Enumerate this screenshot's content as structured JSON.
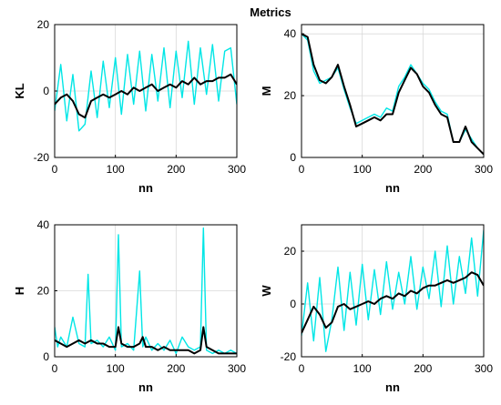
{
  "figure": {
    "title": "Metrics"
  },
  "chart_data": [
    {
      "type": "line",
      "ylabel": "KL",
      "xlabel": "nn",
      "xlim": [
        0,
        300
      ],
      "ylim": [
        -20,
        20
      ],
      "xticks": [
        0,
        100,
        200,
        300
      ],
      "yticks": [
        -20,
        0,
        20
      ],
      "grid": true,
      "colors": {
        "raw": "#00e6e6",
        "smooth": "#000000"
      },
      "series": [
        {
          "style": "raw",
          "x": [
            0,
            10,
            20,
            30,
            40,
            50,
            60,
            70,
            80,
            90,
            100,
            110,
            120,
            130,
            140,
            150,
            160,
            170,
            180,
            190,
            200,
            210,
            220,
            230,
            240,
            250,
            260,
            270,
            280,
            290,
            300
          ],
          "y": [
            -6,
            8,
            -9,
            5,
            -12,
            -10,
            6,
            -8,
            9,
            -5,
            10,
            -7,
            11,
            -4,
            12,
            -6,
            11,
            -3,
            13,
            -5,
            12,
            -2,
            15,
            -4,
            13,
            -1,
            14,
            -3,
            12,
            13,
            -4
          ]
        },
        {
          "style": "smooth",
          "x": [
            0,
            10,
            20,
            30,
            40,
            50,
            60,
            70,
            80,
            90,
            100,
            110,
            120,
            130,
            140,
            150,
            160,
            170,
            180,
            190,
            200,
            210,
            220,
            230,
            240,
            250,
            260,
            270,
            280,
            290,
            300
          ],
          "y": [
            -4,
            -2,
            -1,
            -3,
            -7,
            -8,
            -3,
            -2,
            -1,
            -2,
            -1,
            0,
            -1,
            1,
            0,
            1,
            2,
            0,
            1,
            2,
            1,
            3,
            2,
            4,
            2,
            3,
            3,
            4,
            4,
            5,
            2
          ]
        }
      ]
    },
    {
      "type": "line",
      "ylabel": "M",
      "xlabel": "nn",
      "xlim": [
        0,
        300
      ],
      "ylim": [
        0,
        43
      ],
      "xticks": [
        0,
        100,
        200,
        300
      ],
      "yticks": [
        0,
        20,
        40
      ],
      "grid": true,
      "colors": {
        "raw": "#00e6e6",
        "smooth": "#000000"
      },
      "series": [
        {
          "style": "raw",
          "x": [
            0,
            10,
            20,
            30,
            40,
            50,
            60,
            70,
            80,
            90,
            100,
            110,
            120,
            130,
            140,
            150,
            160,
            170,
            180,
            190,
            200,
            210,
            220,
            230,
            240,
            250,
            260,
            270,
            280,
            290,
            300
          ],
          "y": [
            40,
            38,
            28,
            24,
            25,
            26,
            29,
            22,
            16,
            11,
            12,
            13,
            14,
            13,
            16,
            15,
            23,
            26,
            30,
            27,
            24,
            22,
            18,
            15,
            14,
            5,
            5,
            9,
            6,
            3,
            1
          ]
        },
        {
          "style": "smooth",
          "x": [
            0,
            10,
            20,
            30,
            40,
            50,
            60,
            70,
            80,
            90,
            100,
            110,
            120,
            130,
            140,
            150,
            160,
            170,
            180,
            190,
            200,
            210,
            220,
            230,
            240,
            250,
            260,
            270,
            280,
            290,
            300
          ],
          "y": [
            40,
            39,
            30,
            25,
            24,
            26,
            30,
            23,
            17,
            10,
            11,
            12,
            13,
            12,
            14,
            14,
            21,
            25,
            29,
            27,
            23,
            21,
            17,
            14,
            13,
            5,
            5,
            10,
            5,
            3,
            1
          ]
        }
      ]
    },
    {
      "type": "line",
      "ylabel": "H",
      "xlabel": "nn",
      "xlim": [
        0,
        300
      ],
      "ylim": [
        0,
        40
      ],
      "xticks": [
        0,
        100,
        200,
        300
      ],
      "yticks": [
        0,
        20,
        40
      ],
      "grid": true,
      "colors": {
        "raw": "#00e6e6",
        "smooth": "#000000"
      },
      "series": [
        {
          "style": "raw",
          "x": [
            0,
            5,
            10,
            20,
            30,
            40,
            50,
            55,
            60,
            70,
            80,
            90,
            100,
            105,
            110,
            120,
            130,
            140,
            145,
            150,
            160,
            170,
            180,
            190,
            200,
            210,
            220,
            230,
            240,
            245,
            250,
            260,
            270,
            280,
            290,
            300
          ],
          "y": [
            9,
            3,
            6,
            3,
            12,
            4,
            3,
            25,
            4,
            5,
            3,
            6,
            2,
            37,
            3,
            4,
            2,
            26,
            3,
            6,
            2,
            4,
            2,
            5,
            1,
            6,
            3,
            2,
            3,
            39,
            2,
            1,
            2,
            1,
            2,
            1
          ],
          "peaks_note": ""
        },
        {
          "style": "smooth",
          "x": [
            0,
            10,
            20,
            30,
            40,
            50,
            60,
            70,
            80,
            90,
            100,
            105,
            110,
            120,
            130,
            140,
            145,
            150,
            160,
            170,
            180,
            190,
            200,
            210,
            220,
            230,
            240,
            245,
            250,
            260,
            270,
            280,
            290,
            300
          ],
          "y": [
            5,
            4,
            3,
            4,
            5,
            4,
            5,
            4,
            4,
            3,
            3,
            9,
            4,
            3,
            3,
            4,
            6,
            3,
            3,
            2,
            3,
            2,
            2,
            2,
            2,
            1,
            2,
            9,
            3,
            2,
            1,
            1,
            1,
            1
          ]
        }
      ]
    },
    {
      "type": "line",
      "ylabel": "W",
      "xlabel": "nn",
      "xlim": [
        0,
        300
      ],
      "ylim": [
        -20,
        30
      ],
      "xticks": [
        0,
        100,
        200,
        300
      ],
      "yticks": [
        -20,
        0,
        20
      ],
      "grid": true,
      "colors": {
        "raw": "#00e6e6",
        "smooth": "#000000"
      },
      "series": [
        {
          "style": "raw",
          "x": [
            0,
            10,
            20,
            30,
            40,
            50,
            60,
            70,
            80,
            90,
            100,
            110,
            120,
            130,
            140,
            150,
            160,
            170,
            180,
            190,
            200,
            210,
            220,
            230,
            240,
            250,
            260,
            270,
            280,
            290,
            300
          ],
          "y": [
            -12,
            8,
            -14,
            10,
            -18,
            -6,
            14,
            -10,
            12,
            -8,
            15,
            -6,
            13,
            -4,
            16,
            -2,
            12,
            0,
            18,
            -2,
            14,
            2,
            20,
            -1,
            22,
            0,
            18,
            4,
            25,
            3,
            28
          ]
        },
        {
          "style": "smooth",
          "x": [
            0,
            10,
            20,
            30,
            40,
            50,
            60,
            70,
            80,
            90,
            100,
            110,
            120,
            130,
            140,
            150,
            160,
            170,
            180,
            190,
            200,
            210,
            220,
            230,
            240,
            250,
            260,
            270,
            280,
            290,
            300
          ],
          "y": [
            -11,
            -6,
            -1,
            -4,
            -9,
            -7,
            -1,
            0,
            -2,
            -1,
            0,
            1,
            0,
            2,
            3,
            2,
            4,
            3,
            5,
            4,
            6,
            7,
            7,
            8,
            9,
            8,
            9,
            10,
            12,
            11,
            7
          ]
        }
      ]
    }
  ]
}
